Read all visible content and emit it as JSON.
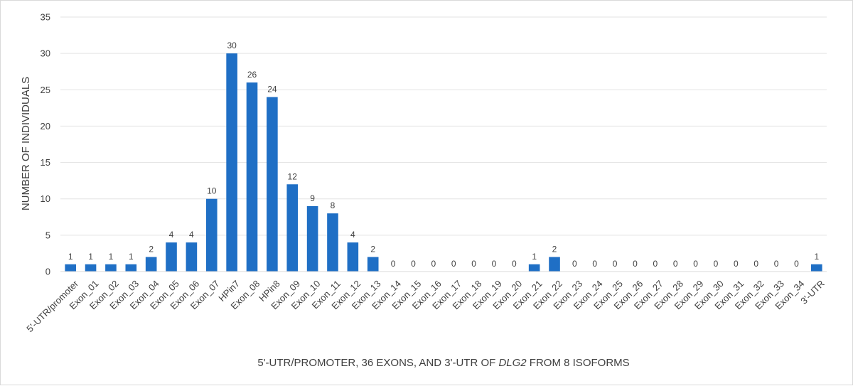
{
  "chart_data": {
    "type": "bar",
    "categories": [
      "5'-UTR/promoter",
      "Exon_01",
      "Exon_02",
      "Exon_03",
      "Exon_04",
      "Exon_05",
      "Exon_06",
      "Exon_07",
      "HPin7",
      "Exon_08",
      "HPin8",
      "Exon_09",
      "Exon_10",
      "Exon_11",
      "Exon_12",
      "Exon_13",
      "Exon_14",
      "Exon_15",
      "Exon_16",
      "Exon_17",
      "Exon_18",
      "Exon_19",
      "Exon_20",
      "Exon_21",
      "Exon_22",
      "Exon_23",
      "Exon_24",
      "Exon_25",
      "Exon_26",
      "Exon_27",
      "Exon_28",
      "Exon_29",
      "Exon_30",
      "Exon_31",
      "Exon_32",
      "Exon_33",
      "Exon_34",
      "3'-UTR"
    ],
    "values": [
      1,
      1,
      1,
      1,
      2,
      4,
      4,
      10,
      30,
      26,
      24,
      12,
      9,
      8,
      4,
      2,
      0,
      0,
      0,
      0,
      0,
      0,
      0,
      1,
      2,
      0,
      0,
      0,
      0,
      0,
      0,
      0,
      0,
      0,
      0,
      0,
      0,
      1
    ],
    "title": "",
    "xlabel_parts": [
      "5'-UTR/PROMOTER, 36 EXONS, AND 3'-UTR OF ",
      "DLG2",
      " FROM 8 ISOFORMS"
    ],
    "ylabel": "NUMBER OF INDIVIDUALS",
    "ylim": [
      0,
      35
    ],
    "yticks": [
      "0",
      "5",
      "10",
      "15",
      "20",
      "25",
      "30",
      "35"
    ],
    "grid": true,
    "bar_color": "#1f6fc5",
    "data_labels": true
  }
}
